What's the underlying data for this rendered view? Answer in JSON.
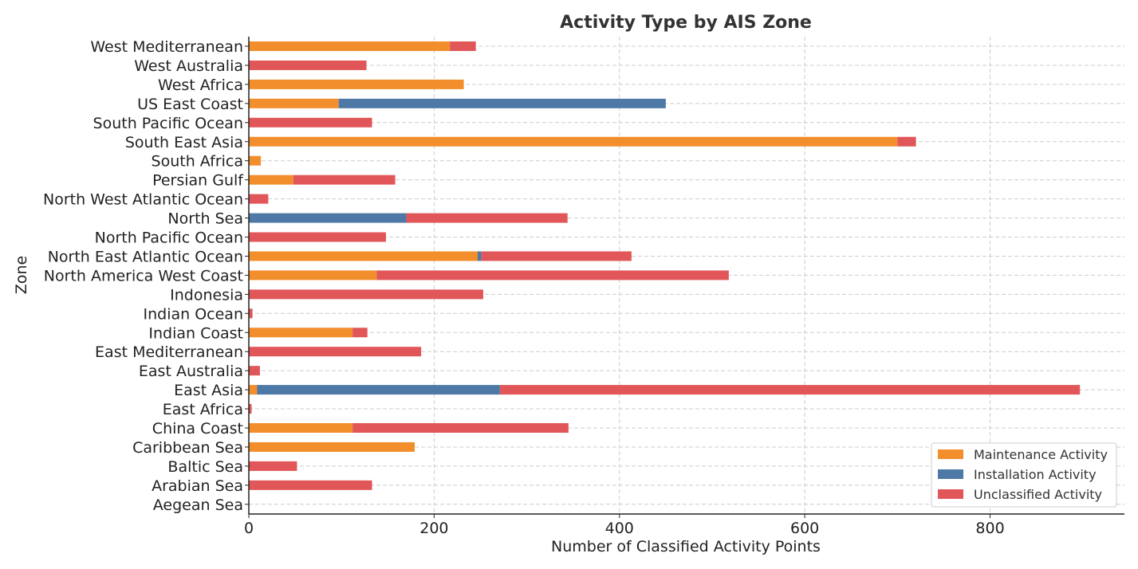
{
  "chart_data": {
    "type": "bar",
    "orientation": "horizontal",
    "stacked": true,
    "title": "Activity Type by AIS Zone",
    "xlabel": "Number of Classified Activity Points",
    "ylabel": "Zone",
    "xlim": [
      0,
      945
    ],
    "xticks": [
      0,
      200,
      400,
      600,
      800
    ],
    "grid": true,
    "legend_position": "bottom-right",
    "categories": [
      "West Mediterranean",
      "West Australia",
      "West Africa",
      "US East Coast",
      "South Pacific Ocean",
      "South East Asia",
      "South Africa",
      "Persian Gulf",
      "North West Atlantic Ocean",
      "North Sea",
      "North Pacific Ocean",
      "North East Atlantic Ocean",
      "North America West Coast",
      "Indonesia",
      "Indian Ocean",
      "Indian Coast",
      "East Mediterranean",
      "East Australia",
      "East Asia",
      "East Africa",
      "China Coast",
      "Caribbean Sea",
      "Baltic Sea",
      "Arabian Sea",
      "Aegean Sea"
    ],
    "series": [
      {
        "name": "Maintenance Activity",
        "color": "#f28e2b",
        "values": [
          217,
          0,
          232,
          97,
          0,
          700,
          13,
          48,
          0,
          0,
          0,
          247,
          138,
          0,
          0,
          112,
          0,
          0,
          9,
          0,
          112,
          179,
          0,
          0,
          0
        ]
      },
      {
        "name": "Installation Activity",
        "color": "#4e79a7",
        "values": [
          0,
          0,
          0,
          353,
          0,
          0,
          0,
          0,
          0,
          170,
          0,
          4,
          0,
          0,
          0,
          0,
          0,
          0,
          262,
          0,
          0,
          0,
          0,
          0,
          0
        ]
      },
      {
        "name": "Unclassified Activity",
        "color": "#e15759",
        "values": [
          28,
          127,
          0,
          0,
          133,
          20,
          0,
          110,
          21,
          174,
          148,
          162,
          380,
          253,
          4,
          16,
          186,
          12,
          626,
          3,
          233,
          0,
          52,
          133,
          0
        ]
      }
    ]
  }
}
